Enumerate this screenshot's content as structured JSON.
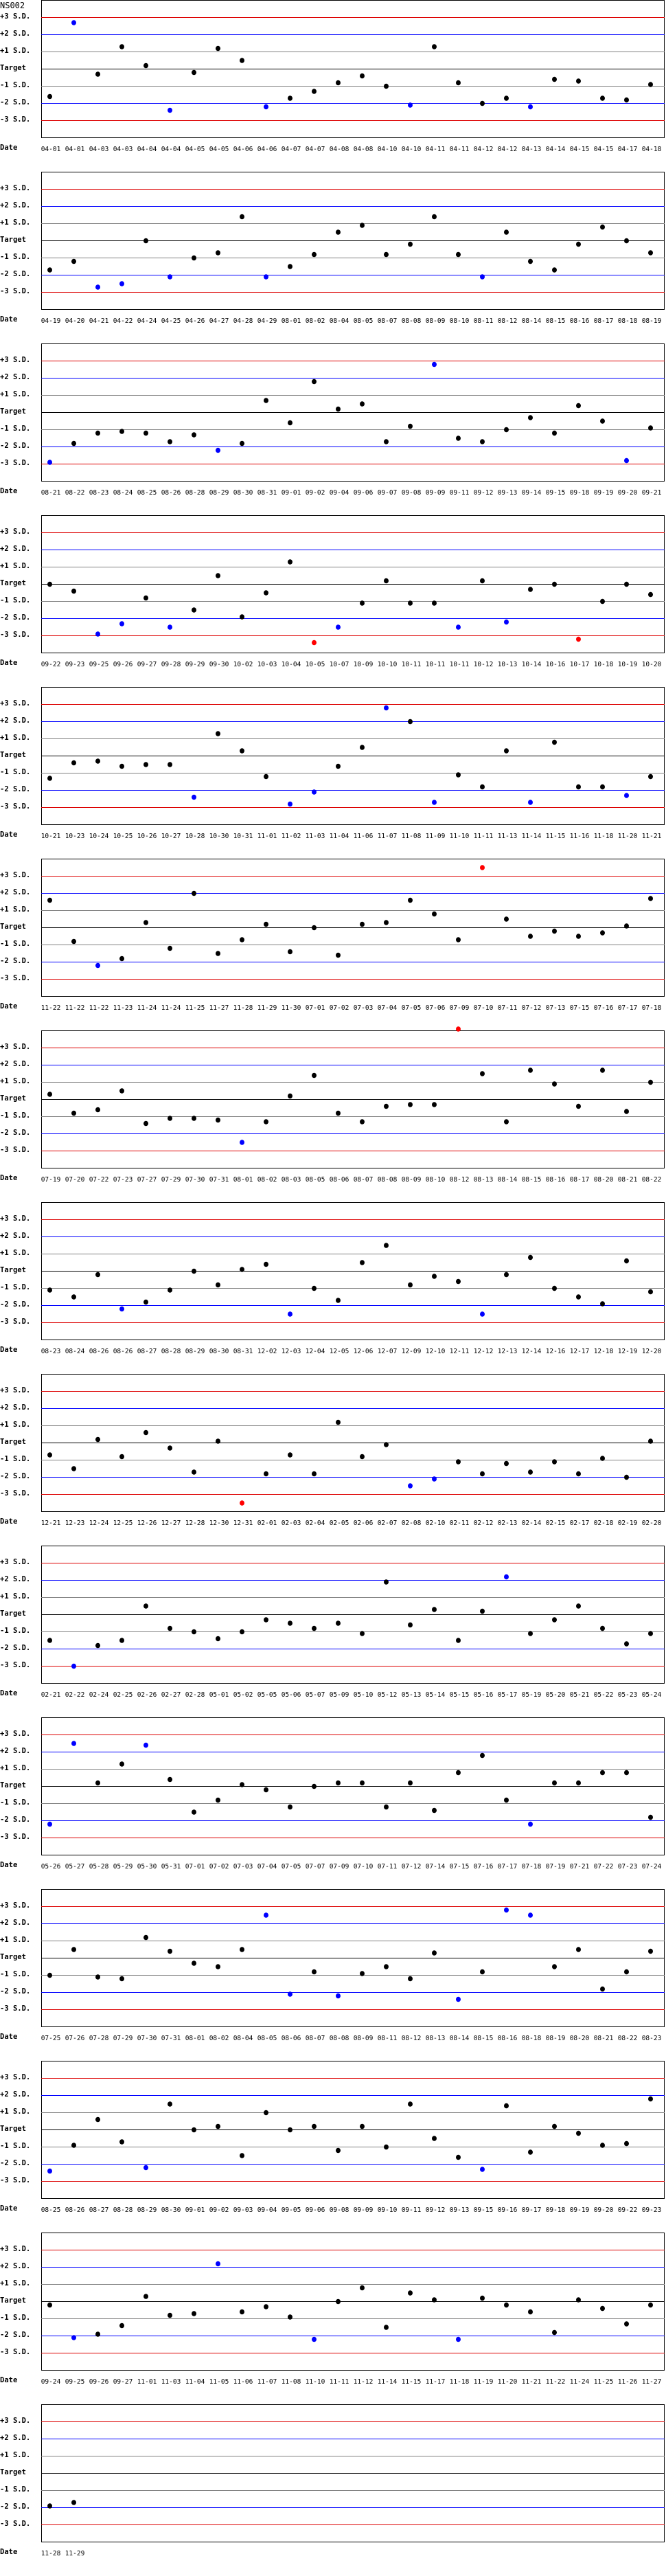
{
  "chart_data": {
    "type": "scatter",
    "title": "NS002",
    "xlabel": "Date",
    "y_tick_labels": [
      "+3 S.D.",
      "+2 S.D.",
      "+1 S.D.",
      "Target",
      "-1 S.D.",
      "-2 S.D.",
      "-3 S.D."
    ],
    "y_tick_values": [
      3,
      2,
      1,
      0,
      -1,
      -2,
      -3
    ],
    "ylim": [
      -4,
      4
    ],
    "grid": true,
    "colors": {
      "limit_3sd": "#dd0000",
      "limit_2sd": "#0000ff",
      "limit_1sd": "#808080",
      "target": "#000000",
      "point_in_control": "#000000",
      "point_warning": "#0000ff",
      "point_reject": "#ff0000"
    },
    "dates": [
      "04-01",
      "04-01",
      "04-03",
      "04-03",
      "04-04",
      "04-04",
      "04-05",
      "04-05",
      "04-06",
      "04-06",
      "04-07",
      "04-07",
      "04-08",
      "04-08",
      "04-10",
      "04-10",
      "04-11",
      "04-11",
      "04-12",
      "04-12",
      "04-13",
      "04-14",
      "04-15",
      "04-15",
      "04-17",
      "04-18",
      "04-19",
      "04-20",
      "04-21",
      "04-22",
      "04-24",
      "04-25",
      "04-26",
      "04-27",
      "04-28",
      "04-29",
      "08-01",
      "08-02",
      "08-04",
      "08-05",
      "08-07",
      "08-08",
      "08-09",
      "08-10",
      "08-11",
      "08-12",
      "08-14",
      "08-15",
      "08-16",
      "08-17",
      "08-18",
      "08-19",
      "08-21",
      "08-22",
      "08-23",
      "08-24",
      "08-25",
      "08-26",
      "08-28",
      "08-29",
      "08-30",
      "08-31",
      "09-01",
      "09-02",
      "09-04",
      "09-06",
      "09-07",
      "09-08",
      "09-09",
      "09-11",
      "09-12",
      "09-13",
      "09-14",
      "09-15",
      "09-18",
      "09-19",
      "09-20",
      "09-21",
      "09-22",
      "09-23",
      "09-25",
      "09-26",
      "09-27",
      "09-28",
      "09-29",
      "09-30",
      "10-02",
      "10-03",
      "10-04",
      "10-05",
      "10-07",
      "10-09",
      "10-10",
      "10-11",
      "10-11",
      "10-11",
      "10-12",
      "10-13",
      "10-14",
      "10-16",
      "10-17",
      "10-18",
      "10-19",
      "10-20",
      "10-21",
      "10-23",
      "10-24",
      "10-25",
      "10-26",
      "10-27",
      "10-28",
      "10-30",
      "10-31",
      "11-01",
      "11-02",
      "11-03",
      "11-04",
      "11-06",
      "11-07",
      "11-08",
      "11-09",
      "11-10",
      "11-11",
      "11-13",
      "11-14",
      "11-15",
      "11-16",
      "11-18",
      "11-20",
      "11-21",
      "11-22",
      "11-22",
      "11-22",
      "11-23",
      "11-24",
      "11-24",
      "11-25",
      "11-27",
      "11-28",
      "11-29",
      "11-30",
      "07-01",
      "07-02",
      "07-03",
      "07-04",
      "07-05",
      "07-06",
      "07-09",
      "07-10",
      "07-11",
      "07-12",
      "07-13",
      "07-15",
      "07-16",
      "07-17",
      "07-18",
      "07-19",
      "07-20",
      "07-22",
      "07-23",
      "07-27",
      "07-29",
      "07-30",
      "07-31",
      "08-01",
      "08-02",
      "08-03",
      "08-05",
      "08-06",
      "08-07",
      "08-08",
      "08-09",
      "08-10",
      "08-12",
      "08-13",
      "08-14",
      "08-15",
      "08-16",
      "08-17",
      "08-20",
      "08-21",
      "08-22",
      "08-23",
      "08-24",
      "08-26",
      "08-26",
      "08-27",
      "08-28",
      "08-29",
      "08-30",
      "08-31",
      "12-02",
      "12-03",
      "12-04",
      "12-05",
      "12-06",
      "12-07",
      "12-09",
      "12-10",
      "12-11",
      "12-12",
      "12-13",
      "12-14",
      "12-16",
      "12-17",
      "12-18",
      "12-19",
      "12-20",
      "12-21",
      "12-23",
      "12-24",
      "12-25",
      "12-26",
      "12-27",
      "12-28",
      "12-30",
      "12-31",
      "02-01",
      "02-03",
      "02-04",
      "02-05",
      "02-06",
      "02-07",
      "02-08",
      "02-10",
      "02-11",
      "02-12",
      "02-13",
      "02-14",
      "02-15",
      "02-17",
      "02-18",
      "02-19",
      "02-20",
      "02-21",
      "02-22",
      "02-24",
      "02-25",
      "02-26",
      "02-27",
      "02-28",
      "05-01",
      "05-02",
      "05-05",
      "05-06",
      "05-07",
      "05-09",
      "05-10",
      "05-12",
      "05-13",
      "05-14",
      "05-15",
      "05-16",
      "05-17",
      "05-19",
      "05-20",
      "05-21",
      "05-22",
      "05-23",
      "05-24",
      "05-26",
      "05-27",
      "05-28",
      "05-29",
      "05-30",
      "05-31",
      "07-01",
      "07-02",
      "07-03",
      "07-04",
      "07-05",
      "07-07",
      "07-09",
      "07-10",
      "07-11",
      "07-12",
      "07-14",
      "07-15",
      "07-16",
      "07-17",
      "07-18",
      "07-19",
      "07-21",
      "07-22",
      "07-23",
      "07-24",
      "07-25",
      "07-26",
      "07-28",
      "07-29",
      "07-30",
      "07-31",
      "08-01",
      "08-02",
      "08-04",
      "08-05",
      "08-06",
      "08-07",
      "08-08",
      "08-09",
      "08-11",
      "08-12",
      "08-13",
      "08-14",
      "08-15",
      "08-16",
      "08-18",
      "08-19",
      "08-20",
      "08-21",
      "08-22",
      "08-23",
      "08-25",
      "08-26",
      "08-27",
      "08-28",
      "08-29",
      "08-30",
      "09-01",
      "09-02",
      "09-03",
      "09-04",
      "09-05",
      "09-06",
      "09-08",
      "09-09",
      "09-10",
      "09-11",
      "09-12",
      "09-13",
      "09-15",
      "09-16",
      "09-17",
      "09-18",
      "09-19",
      "09-20",
      "09-22",
      "09-23",
      "09-24",
      "09-25",
      "09-26",
      "09-27",
      "11-01",
      "11-03",
      "11-04",
      "11-05",
      "11-06",
      "11-07",
      "11-08",
      "11-10",
      "11-11",
      "11-12",
      "11-14",
      "11-15",
      "11-17",
      "11-18",
      "11-19",
      "11-20",
      "11-21",
      "11-22",
      "11-24",
      "11-25",
      "11-26",
      "11-27",
      "11-28",
      "11-29"
    ],
    "values": [
      -1.6,
      2.7,
      -0.3,
      1.3,
      0.2,
      -2.4,
      -0.2,
      1.2,
      0.5,
      -2.2,
      -1.7,
      -1.3,
      -0.8,
      -0.4,
      -1.0,
      -2.1,
      1.3,
      -0.8,
      -2.0,
      -1.7,
      -2.2,
      -0.6,
      -0.7,
      -1.7,
      -1.8,
      -0.9,
      -1.7,
      -1.2,
      -2.7,
      -2.5,
      0.0,
      -2.1,
      -1.0,
      -0.7,
      1.4,
      -2.1,
      -1.5,
      -0.8,
      0.5,
      0.9,
      -0.8,
      -0.2,
      1.4,
      -0.8,
      -2.1,
      0.5,
      -1.2,
      -1.7,
      -0.2,
      0.8,
      0.0,
      -0.7,
      -2.9,
      -1.8,
      -1.2,
      -1.1,
      -1.2,
      -1.7,
      -1.3,
      -2.2,
      -1.8,
      0.7,
      -0.6,
      1.8,
      0.2,
      0.5,
      -1.7,
      -0.8,
      2.8,
      -1.5,
      -1.7,
      -1.0,
      -0.3,
      -1.2,
      0.4,
      -0.5,
      -2.8,
      -0.9,
      0.0,
      -0.4,
      -2.9,
      -2.3,
      -0.8,
      -2.5,
      -1.5,
      0.5,
      -1.9,
      -0.5,
      1.3,
      -3.4,
      -2.5,
      -1.1,
      0.2,
      -1.1,
      -1.1,
      -2.5,
      0.2,
      -2.2,
      -0.3,
      0.0,
      -3.2,
      -1.0,
      0.0,
      -0.6,
      -1.3,
      -0.4,
      -0.3,
      -0.6,
      -0.5,
      -0.5,
      -2.4,
      1.3,
      0.3,
      -1.2,
      -2.8,
      -2.1,
      -0.6,
      0.5,
      2.8,
      2.0,
      -2.7,
      -1.1,
      -1.8,
      0.3,
      -2.7,
      0.8,
      -1.8,
      -1.8,
      -2.3,
      -1.2,
      1.6,
      -0.8,
      -2.2,
      -1.8,
      0.3,
      -1.2,
      2.0,
      -1.5,
      -0.7,
      0.2,
      -1.4,
      0.0,
      -1.6,
      0.2,
      0.3,
      1.6,
      0.8,
      -0.7,
      3.5,
      0.5,
      -0.5,
      -0.2,
      -0.5,
      -0.3,
      0.1,
      1.7,
      0.3,
      -0.8,
      -0.6,
      0.5,
      -1.4,
      -1.1,
      -1.1,
      -1.2,
      -2.5,
      -1.3,
      0.2,
      1.4,
      -0.8,
      -1.3,
      -0.4,
      -0.3,
      -0.3,
      4.1,
      1.5,
      -1.3,
      1.7,
      0.9,
      -0.4,
      1.7,
      -0.7,
      1.0,
      -1.1,
      -1.5,
      -0.2,
      -2.2,
      -1.8,
      -1.1,
      0.0,
      -0.8,
      0.1,
      0.4,
      -2.5,
      -1.0,
      -1.7,
      0.5,
      1.5,
      -0.8,
      -0.3,
      -0.6,
      -2.5,
      -0.2,
      0.8,
      -1.0,
      -1.5,
      -1.9,
      0.6,
      -1.2,
      -0.7,
      -1.5,
      0.2,
      -0.8,
      0.6,
      -0.3,
      -1.7,
      0.1,
      -3.5,
      -1.8,
      -0.7,
      -1.8,
      1.2,
      -0.8,
      -0.1,
      -2.5,
      -2.1,
      -1.1,
      -1.8,
      -1.2,
      -1.7,
      -1.1,
      -1.8,
      -0.9,
      -2.0,
      0.1,
      -1.5,
      -3.0,
      -1.8,
      -1.5,
      0.5,
      -0.8,
      -1.0,
      -1.4,
      -1.0,
      -0.3,
      -0.5,
      -0.8,
      -0.5,
      -1.1,
      1.9,
      -0.6,
      0.3,
      -1.5,
      0.2,
      2.2,
      -1.1,
      -0.3,
      0.5,
      -0.8,
      -1.7,
      -1.1,
      -2.2,
      2.5,
      0.2,
      1.3,
      2.4,
      0.4,
      -1.5,
      -0.8,
      0.1,
      -0.2,
      -1.2,
      0.0,
      0.2,
      0.2,
      -1.2,
      0.2,
      -1.4,
      0.8,
      1.8,
      -0.8,
      -2.2,
      0.2,
      0.2,
      0.8,
      0.8,
      -1.8,
      -1.0,
      0.5,
      -1.1,
      -1.2,
      1.2,
      0.4,
      -0.3,
      -0.5,
      0.5,
      2.5,
      -2.1,
      -0.8,
      -2.2,
      -0.9,
      -0.5,
      -1.2,
      0.3,
      -2.4,
      -0.8,
      2.8,
      2.5,
      -0.5,
      0.5,
      -1.8,
      -0.8,
      0.4,
      -2.4,
      -0.9,
      0.6,
      -0.7,
      -2.2,
      1.5,
      0.0,
      0.2,
      -1.5,
      1.0,
      0.0,
      0.2,
      -1.2,
      0.2,
      -1.0,
      1.5,
      -0.5,
      -1.6,
      -2.3,
      1.4,
      -1.3,
      0.2,
      -0.2,
      -0.9,
      -0.8,
      1.8,
      -0.2,
      -2.1,
      -1.9,
      -1.4,
      0.3,
      -0.8,
      -0.7,
      2.2,
      -0.6,
      -0.3,
      -0.9,
      -2.2,
      0.0,
      0.8,
      -1.5,
      0.5,
      0.1,
      -2.2,
      0.2,
      -0.2,
      -0.6,
      -1.8,
      0.1,
      -0.4,
      -1.3,
      -0.2,
      -1.9,
      -1.7
    ]
  }
}
